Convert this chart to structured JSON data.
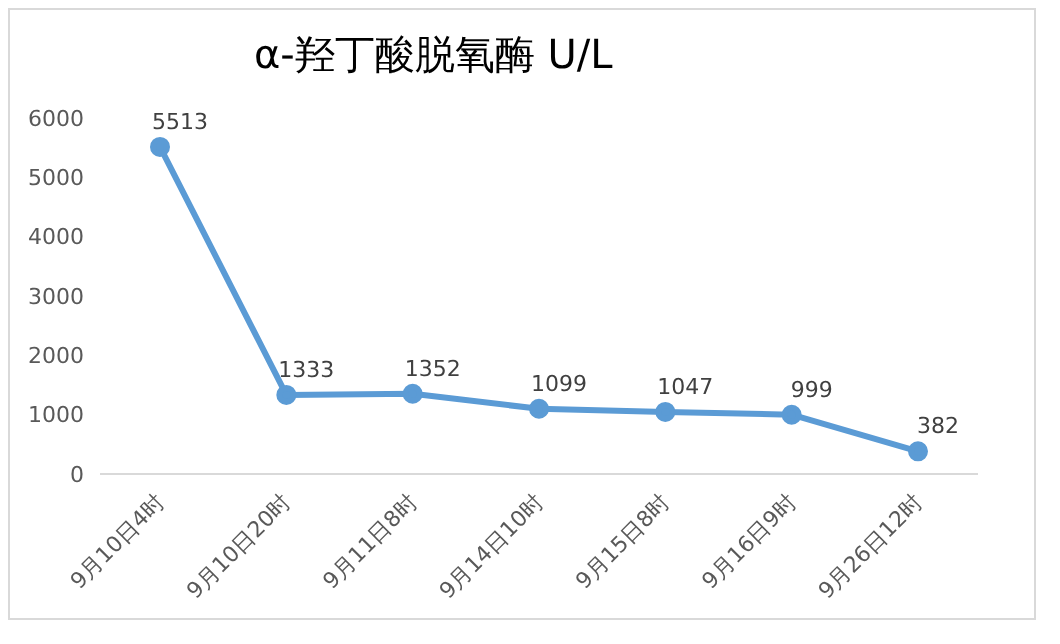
{
  "chart_data": {
    "type": "line",
    "title": "α-羟丁酸脱氧酶 U/L",
    "categories": [
      "9月10日4时",
      "9月10日20时",
      "9月11日8时",
      "9月14日10时",
      "9月15日8时",
      "9月16日9时",
      "9月26日12时"
    ],
    "series": [
      {
        "color": "#5b9bd5",
        "values": [
          5513,
          1333,
          1352,
          1099,
          1047,
          999,
          382
        ]
      }
    ],
    "ylim": [
      0,
      6000
    ],
    "yticks": [
      0,
      1000,
      2000,
      3000,
      4000,
      5000,
      6000
    ],
    "grid": false,
    "legend": false,
    "marker": "circle",
    "line_style": "solid",
    "data_labels": true
  }
}
